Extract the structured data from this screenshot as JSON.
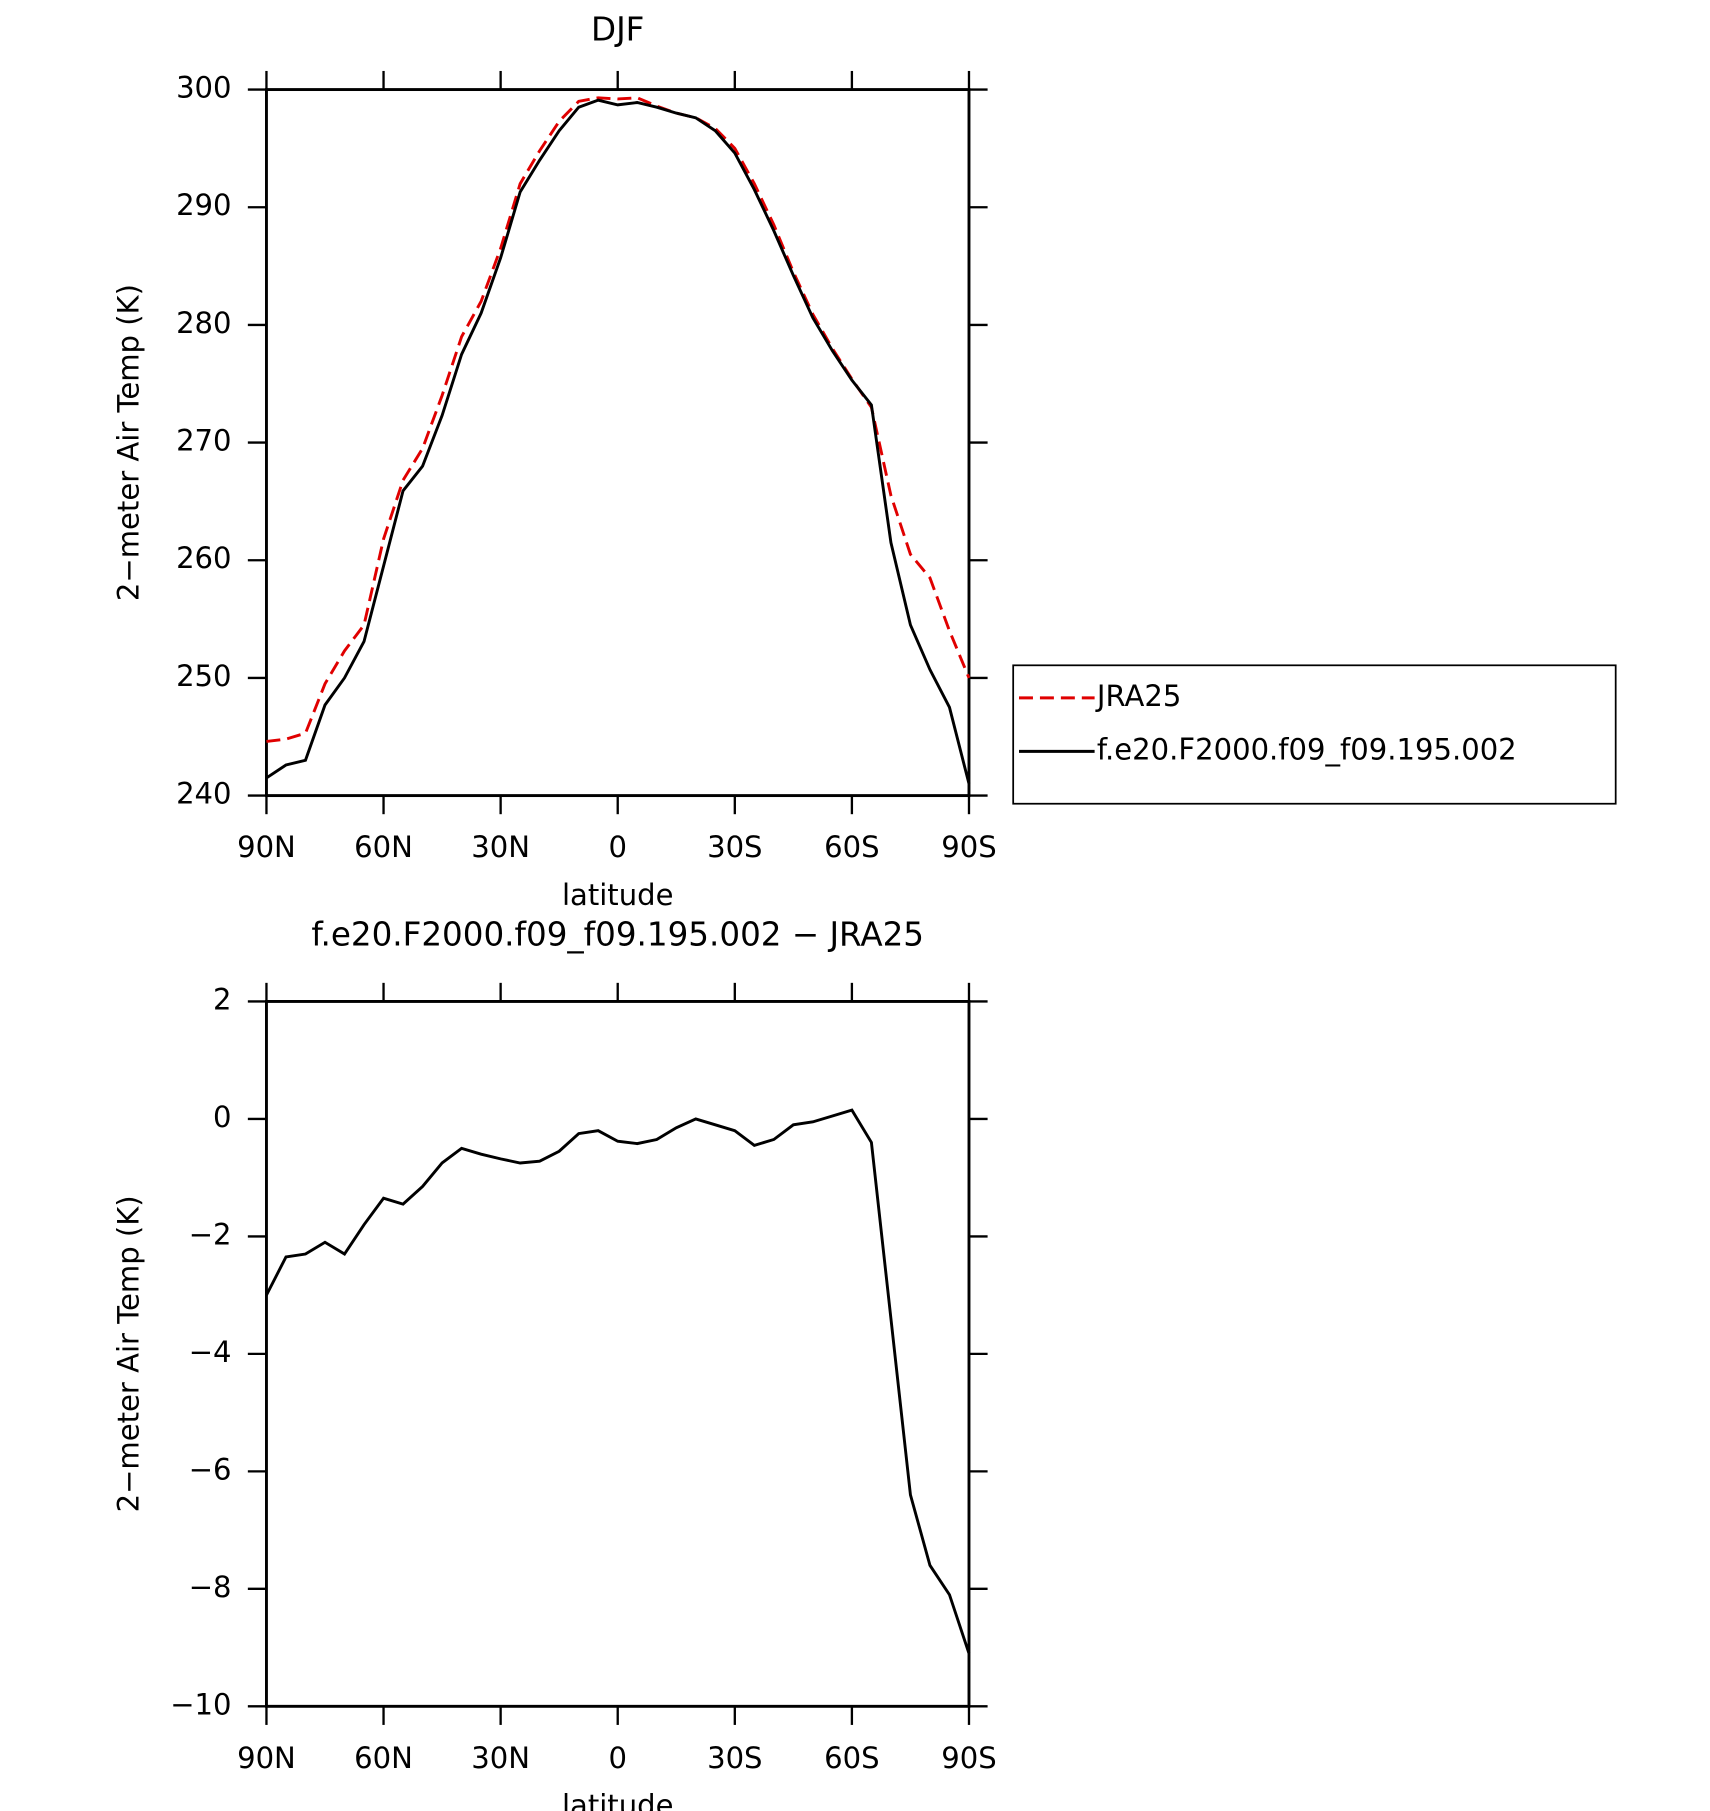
{
  "chart_data": [
    {
      "type": "line",
      "title": "DJF",
      "xlabel": "latitude",
      "ylabel": "2−meter Air Temp (K)",
      "x": [
        90,
        85,
        80,
        75,
        70,
        65,
        60,
        55,
        50,
        45,
        40,
        35,
        30,
        25,
        20,
        15,
        10,
        5,
        0,
        -5,
        -10,
        -15,
        -20,
        -25,
        -30,
        -35,
        -40,
        -45,
        -50,
        -55,
        -60,
        -65,
        -70,
        -75,
        -80,
        -85,
        -90
      ],
      "xlim": [
        90,
        -90
      ],
      "xticks": [
        {
          "value": 90,
          "label": "90N"
        },
        {
          "value": 60,
          "label": "60N"
        },
        {
          "value": 30,
          "label": "30N"
        },
        0,
        {
          "value": -30,
          "label": "30S"
        },
        {
          "value": -60,
          "label": "60S"
        },
        {
          "value": -90,
          "label": "90S"
        }
      ],
      "ylim": [
        240,
        300
      ],
      "yticks": [
        240,
        250,
        260,
        270,
        280,
        290,
        300
      ],
      "series": [
        {
          "name": "JRA25",
          "color": "#e00000",
          "dash": "dashed",
          "values": [
            244.6,
            244.8,
            245.3,
            249.5,
            252.3,
            254.5,
            261.8,
            266.8,
            269.5,
            274.0,
            279.0,
            282.0,
            286.5,
            292.0,
            294.8,
            297.3,
            299.0,
            299.3,
            299.2,
            299.3,
            298.6,
            298.0,
            297.6,
            296.7,
            295.0,
            292.0,
            288.5,
            284.5,
            280.9,
            278.0,
            275.4,
            273.0,
            265.5,
            260.5,
            258.5,
            254.0,
            250.0
          ]
        },
        {
          "name": "f.e20.F2000.f09_f09.195.002",
          "color": "#000000",
          "dash": "solid",
          "values": [
            241.5,
            242.6,
            243.0,
            247.7,
            250.0,
            253.1,
            259.5,
            265.9,
            268.0,
            272.3,
            277.5,
            281.0,
            285.7,
            291.3,
            294.0,
            296.5,
            298.5,
            299.1,
            298.7,
            298.9,
            298.5,
            298.0,
            297.6,
            296.5,
            294.6,
            291.5,
            288.0,
            284.2,
            280.6,
            277.8,
            275.3,
            273.2,
            261.5,
            254.5,
            250.7,
            247.5,
            241.0
          ]
        }
      ]
    },
    {
      "type": "line",
      "title": "f.e20.F2000.f09_f09.195.002 − JRA25",
      "xlabel": "latitude",
      "ylabel": "2−meter Air Temp (K)",
      "x": [
        90,
        85,
        80,
        75,
        70,
        65,
        60,
        55,
        50,
        45,
        40,
        35,
        30,
        25,
        20,
        15,
        10,
        5,
        0,
        -5,
        -10,
        -15,
        -20,
        -25,
        -30,
        -35,
        -40,
        -45,
        -50,
        -55,
        -60,
        -65,
        -70,
        -75,
        -80,
        -85,
        -90
      ],
      "xlim": [
        90,
        -90
      ],
      "xticks": [
        {
          "value": 90,
          "label": "90N"
        },
        {
          "value": 60,
          "label": "60N"
        },
        {
          "value": 30,
          "label": "30N"
        },
        0,
        {
          "value": -30,
          "label": "30S"
        },
        {
          "value": -60,
          "label": "60S"
        },
        {
          "value": -90,
          "label": "90S"
        }
      ],
      "ylim": [
        -10,
        2
      ],
      "yticks": [
        {
          "value": -10,
          "label": "−10"
        },
        {
          "value": -8,
          "label": "−8"
        },
        {
          "value": -6,
          "label": "−6"
        },
        {
          "value": -4,
          "label": "−4"
        },
        {
          "value": -2,
          "label": "−2"
        },
        0,
        2
      ],
      "series": [
        {
          "color": "#000000",
          "dash": "solid",
          "values": [
            -3.0,
            -2.35,
            -2.3,
            -2.1,
            -2.3,
            -1.8,
            -1.35,
            -1.45,
            -1.15,
            -0.75,
            -0.5,
            -0.6,
            -0.68,
            -0.75,
            -0.72,
            -0.55,
            -0.25,
            -0.2,
            -0.38,
            -0.42,
            -0.35,
            -0.15,
            0.0,
            -0.1,
            -0.2,
            -0.45,
            -0.35,
            -0.1,
            -0.05,
            0.05,
            0.15,
            -0.4,
            -3.4,
            -6.4,
            -7.6,
            -8.1,
            -9.1
          ]
        }
      ]
    }
  ]
}
